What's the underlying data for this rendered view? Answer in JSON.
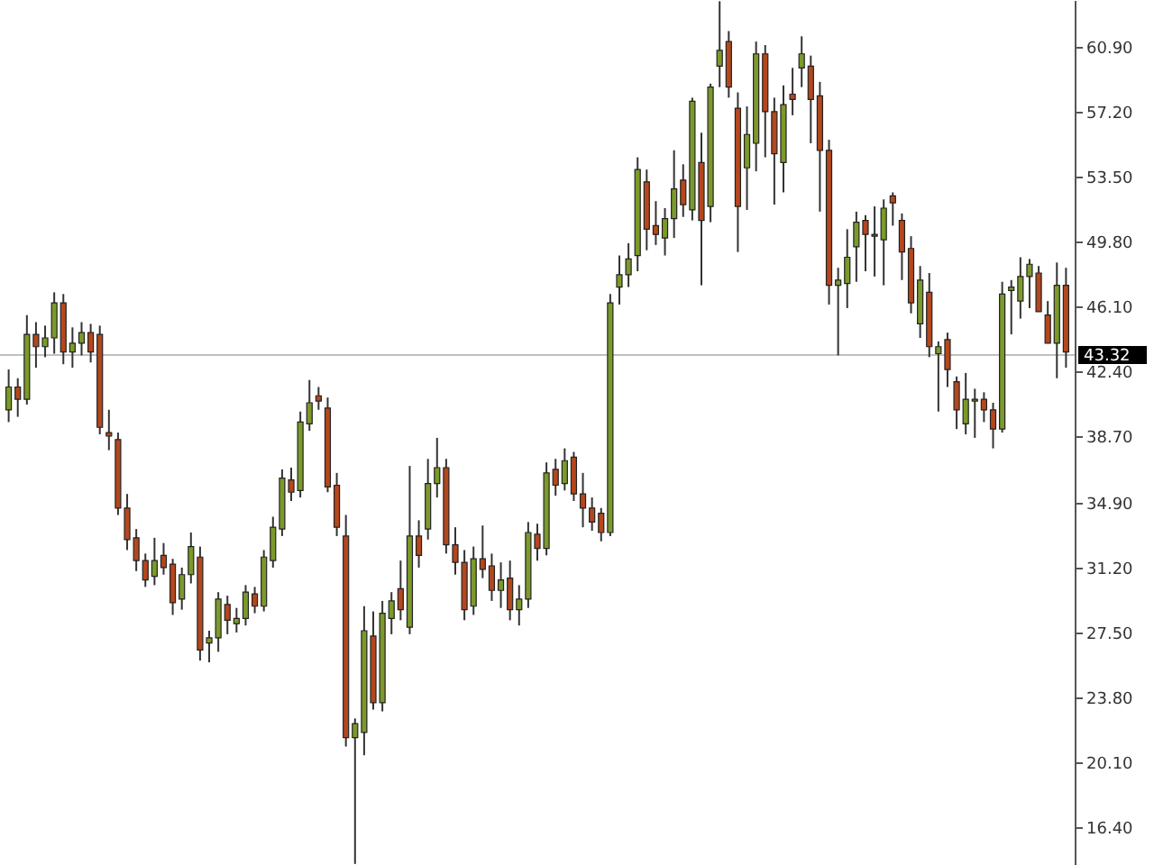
{
  "chart_data": {
    "type": "candlestick",
    "categories": [
      null,
      null,
      null,
      null,
      null,
      null,
      null,
      null,
      null,
      null,
      null,
      null,
      null,
      null,
      null,
      null,
      null,
      null,
      null,
      null,
      null,
      null,
      null,
      null,
      null,
      null,
      null,
      null,
      null,
      null,
      null,
      null,
      null,
      null,
      null,
      null,
      null,
      null,
      null,
      null,
      null,
      null,
      null,
      null,
      null,
      null,
      null,
      null,
      null,
      null,
      null,
      null,
      null,
      null,
      null,
      null,
      null,
      null,
      null,
      null,
      null,
      null,
      null,
      null,
      null,
      null,
      null,
      null,
      null,
      null,
      null,
      null,
      null,
      null,
      null,
      null,
      null,
      null,
      null,
      null,
      null,
      null,
      null,
      null,
      null,
      null,
      null,
      null,
      null,
      null,
      null,
      null,
      null,
      null,
      null,
      null,
      null,
      null,
      null,
      null,
      null,
      null,
      null,
      null,
      null,
      null,
      null,
      null,
      null,
      null,
      null,
      null,
      null,
      null,
      null,
      null,
      null
    ],
    "ohlc": [
      [
        40.2,
        42.5,
        39.5,
        41.5
      ],
      [
        41.5,
        42.0,
        39.8,
        40.8
      ],
      [
        40.8,
        45.6,
        40.5,
        44.5
      ],
      [
        44.5,
        45.2,
        42.6,
        43.8
      ],
      [
        43.8,
        45.0,
        43.2,
        44.3
      ],
      [
        44.3,
        46.9,
        43.4,
        46.3
      ],
      [
        46.3,
        46.8,
        42.8,
        43.5
      ],
      [
        43.5,
        44.9,
        42.6,
        44.0
      ],
      [
        44.0,
        45.2,
        43.3,
        44.6
      ],
      [
        44.6,
        45.1,
        42.9,
        43.5
      ],
      [
        44.5,
        45.0,
        38.8,
        39.2
      ],
      [
        38.9,
        40.2,
        37.9,
        38.7
      ],
      [
        38.5,
        38.9,
        34.2,
        34.6
      ],
      [
        34.6,
        35.4,
        32.2,
        32.8
      ],
      [
        32.9,
        33.4,
        31.0,
        31.6
      ],
      [
        31.6,
        32.0,
        30.1,
        30.5
      ],
      [
        30.7,
        32.9,
        30.2,
        31.6
      ],
      [
        31.9,
        32.6,
        30.8,
        31.2
      ],
      [
        31.4,
        31.7,
        28.5,
        29.2
      ],
      [
        29.4,
        31.2,
        28.8,
        30.8
      ],
      [
        30.8,
        33.2,
        30.3,
        32.4
      ],
      [
        31.8,
        32.4,
        25.9,
        26.5
      ],
      [
        26.9,
        27.6,
        25.8,
        27.2
      ],
      [
        27.2,
        29.8,
        26.4,
        29.4
      ],
      [
        29.1,
        29.6,
        27.4,
        28.2
      ],
      [
        28.0,
        28.9,
        27.5,
        28.3
      ],
      [
        28.3,
        30.2,
        27.9,
        29.8
      ],
      [
        29.7,
        30.1,
        28.6,
        29.0
      ],
      [
        29.0,
        32.2,
        28.7,
        31.8
      ],
      [
        31.6,
        34.1,
        31.2,
        33.5
      ],
      [
        33.4,
        36.8,
        33.0,
        36.3
      ],
      [
        36.2,
        36.9,
        35.0,
        35.5
      ],
      [
        35.6,
        40.1,
        35.2,
        39.5
      ],
      [
        39.4,
        41.9,
        39.0,
        40.6
      ],
      [
        41.0,
        41.5,
        40.2,
        40.7
      ],
      [
        40.3,
        40.9,
        35.5,
        35.8
      ],
      [
        35.9,
        36.6,
        33.0,
        33.5
      ],
      [
        33.0,
        34.2,
        21.0,
        21.5
      ],
      [
        21.5,
        22.6,
        14.3,
        22.3
      ],
      [
        21.8,
        29.0,
        20.5,
        27.6
      ],
      [
        27.3,
        28.7,
        23.1,
        23.5
      ],
      [
        23.5,
        29.3,
        23.0,
        28.6
      ],
      [
        28.3,
        29.8,
        27.4,
        29.3
      ],
      [
        30.0,
        31.6,
        28.2,
        28.8
      ],
      [
        27.8,
        37.0,
        27.4,
        33.0
      ],
      [
        33.0,
        33.9,
        31.2,
        31.9
      ],
      [
        33.4,
        37.4,
        32.8,
        36.0
      ],
      [
        36.0,
        38.6,
        35.2,
        36.9
      ],
      [
        36.9,
        37.4,
        32.0,
        32.5
      ],
      [
        32.5,
        33.5,
        30.8,
        31.5
      ],
      [
        31.5,
        32.2,
        28.2,
        28.8
      ],
      [
        29.0,
        32.4,
        28.5,
        31.7
      ],
      [
        31.7,
        33.6,
        30.6,
        31.1
      ],
      [
        31.3,
        32.0,
        29.3,
        29.9
      ],
      [
        29.9,
        31.5,
        28.9,
        30.5
      ],
      [
        30.6,
        31.6,
        28.2,
        28.8
      ],
      [
        28.8,
        30.2,
        27.9,
        29.4
      ],
      [
        29.4,
        33.8,
        28.9,
        33.2
      ],
      [
        33.1,
        33.7,
        31.6,
        32.3
      ],
      [
        32.3,
        37.2,
        31.9,
        36.6
      ],
      [
        36.8,
        37.4,
        35.3,
        35.9
      ],
      [
        36.0,
        38.0,
        35.6,
        37.3
      ],
      [
        37.5,
        37.8,
        35.0,
        35.4
      ],
      [
        35.4,
        36.6,
        33.5,
        34.6
      ],
      [
        34.6,
        35.2,
        33.3,
        33.8
      ],
      [
        34.3,
        34.6,
        32.7,
        33.2
      ],
      [
        33.2,
        46.8,
        33.0,
        46.3
      ],
      [
        47.2,
        49.0,
        46.2,
        47.9
      ],
      [
        47.9,
        49.7,
        47.2,
        48.8
      ],
      [
        49.0,
        54.6,
        48.1,
        53.9
      ],
      [
        53.2,
        53.9,
        49.3,
        50.5
      ],
      [
        50.7,
        52.1,
        49.6,
        50.2
      ],
      [
        50.0,
        51.7,
        49.0,
        51.1
      ],
      [
        51.1,
        55.0,
        50.0,
        52.8
      ],
      [
        53.3,
        54.2,
        51.2,
        51.9
      ],
      [
        51.6,
        58.0,
        51.0,
        57.8
      ],
      [
        54.3,
        56.0,
        47.3,
        51.0
      ],
      [
        51.8,
        58.8,
        50.9,
        58.6
      ],
      [
        59.8,
        63.5,
        58.6,
        60.7
      ],
      [
        61.2,
        61.8,
        58.0,
        58.6
      ],
      [
        57.4,
        58.3,
        49.2,
        51.8
      ],
      [
        54.0,
        57.5,
        51.6,
        55.9
      ],
      [
        55.4,
        61.2,
        53.8,
        60.5
      ],
      [
        60.5,
        61.0,
        54.6,
        57.2
      ],
      [
        57.2,
        58.0,
        51.9,
        54.8
      ],
      [
        54.3,
        58.7,
        52.6,
        57.6
      ],
      [
        58.2,
        59.7,
        57.0,
        57.9
      ],
      [
        59.7,
        61.5,
        58.6,
        60.5
      ],
      [
        59.8,
        60.4,
        55.4,
        57.9
      ],
      [
        58.1,
        58.9,
        51.5,
        55.0
      ],
      [
        55.0,
        55.6,
        46.2,
        47.3
      ],
      [
        47.3,
        48.3,
        43.3,
        47.6
      ],
      [
        47.4,
        50.5,
        46.0,
        48.9
      ],
      [
        49.5,
        51.5,
        47.5,
        50.9
      ],
      [
        51.0,
        51.3,
        48.1,
        50.2
      ],
      [
        50.2,
        51.8,
        47.8,
        50.1
      ],
      [
        49.9,
        52.2,
        47.3,
        51.7
      ],
      [
        52.4,
        52.6,
        50.7,
        52.0
      ],
      [
        51.0,
        51.4,
        47.6,
        49.2
      ],
      [
        49.4,
        50.1,
        45.7,
        46.3
      ],
      [
        45.1,
        48.4,
        44.3,
        47.6
      ],
      [
        46.9,
        48.0,
        43.2,
        43.8
      ],
      [
        43.4,
        44.1,
        40.1,
        43.8
      ],
      [
        44.2,
        44.6,
        41.5,
        42.5
      ],
      [
        41.8,
        42.1,
        39.1,
        40.2
      ],
      [
        39.4,
        42.3,
        38.8,
        40.8
      ],
      [
        40.7,
        41.4,
        38.6,
        40.8
      ],
      [
        40.8,
        41.2,
        39.5,
        40.2
      ],
      [
        40.2,
        40.6,
        38.0,
        39.1
      ],
      [
        39.1,
        47.5,
        38.9,
        46.8
      ],
      [
        47.0,
        47.6,
        44.5,
        47.2
      ],
      [
        46.4,
        48.9,
        45.4,
        47.8
      ],
      [
        47.8,
        48.8,
        46.0,
        48.5
      ],
      [
        48.0,
        48.4,
        45.8,
        45.8
      ],
      [
        45.6,
        46.4,
        44.0,
        44.0
      ],
      [
        44.0,
        48.6,
        42.0,
        47.3
      ],
      [
        47.3,
        48.3,
        42.6,
        43.5
      ]
    ],
    "colors": [
      "#7b9a2a",
      "#b4471d",
      "#7b9a2a",
      "#b4471d",
      "#7b9a2a",
      "#7b9a2a",
      "#b4471d",
      "#7b9a2a",
      "#7b9a2a",
      "#b4471d",
      "#b4471d",
      "#b4471d",
      "#b4471d",
      "#b4471d",
      "#b4471d",
      "#b4471d",
      "#7b9a2a",
      "#b4471d",
      "#b4471d",
      "#7b9a2a",
      "#7b9a2a",
      "#b4471d",
      "#7b9a2a",
      "#7b9a2a",
      "#b4471d",
      "#7b9a2a",
      "#7b9a2a",
      "#b4471d",
      "#7b9a2a",
      "#7b9a2a",
      "#7b9a2a",
      "#b4471d",
      "#7b9a2a",
      "#7b9a2a",
      "#b4471d",
      "#b4471d",
      "#b4471d",
      "#b4471d",
      "#7b9a2a",
      "#7b9a2a",
      "#b4471d",
      "#7b9a2a",
      "#7b9a2a",
      "#b4471d",
      "#7b9a2a",
      "#b4471d",
      "#7b9a2a",
      "#7b9a2a",
      "#b4471d",
      "#b4471d",
      "#b4471d",
      "#7b9a2a",
      "#b4471d",
      "#b4471d",
      "#7b9a2a",
      "#b4471d",
      "#7b9a2a",
      "#7b9a2a",
      "#b4471d",
      "#7b9a2a",
      "#b4471d",
      "#7b9a2a",
      "#b4471d",
      "#b4471d",
      "#b4471d",
      "#b4471d",
      "#7b9a2a",
      "#7b9a2a",
      "#7b9a2a",
      "#7b9a2a",
      "#b4471d",
      "#b4471d",
      "#7b9a2a",
      "#7b9a2a",
      "#b4471d",
      "#7b9a2a",
      "#b4471d",
      "#7b9a2a",
      "#7b9a2a",
      "#b4471d",
      "#b4471d",
      "#7b9a2a",
      "#7b9a2a",
      "#b4471d",
      "#b4471d",
      "#7b9a2a",
      "#b4471d",
      "#7b9a2a",
      "#b4471d",
      "#b4471d",
      "#b4471d",
      "#7b9a2a",
      "#7b9a2a",
      "#7b9a2a",
      "#b4471d",
      "#b4471d",
      "#7b9a2a",
      "#b4471d",
      "#b4471d",
      "#b4471d",
      "#7b9a2a",
      "#b4471d",
      "#7b9a2a",
      "#b4471d",
      "#b4471d",
      "#7b9a2a",
      "#7b9a2a",
      "#b4471d",
      "#b4471d",
      "#7b9a2a",
      "#7b9a2a",
      "#7b9a2a",
      "#7b9a2a",
      "#b4471d",
      "#b4471d",
      "#7b9a2a",
      "#b4471d"
    ],
    "ylim": [
      14.24,
      63.57
    ],
    "yticks": [
      {
        "value": 16.4,
        "label": "16.40"
      },
      {
        "value": 20.1,
        "label": "20.10"
      },
      {
        "value": 23.8,
        "label": "23.80"
      },
      {
        "value": 27.5,
        "label": "27.50"
      },
      {
        "value": 31.2,
        "label": "31.20"
      },
      {
        "value": 34.9,
        "label": "34.90"
      },
      {
        "value": 38.7,
        "label": "38.70"
      },
      {
        "value": 42.4,
        "label": "42.40"
      },
      {
        "value": 46.1,
        "label": "46.10"
      },
      {
        "value": 49.8,
        "label": "49.80"
      },
      {
        "value": 53.5,
        "label": "53.50"
      },
      {
        "value": 57.2,
        "label": "57.20"
      },
      {
        "value": 60.9,
        "label": "60.90"
      }
    ],
    "ref_lines": [
      {
        "axis": "y",
        "value": 43.32,
        "label": "43.32",
        "color": "#c0c0c0"
      }
    ],
    "tick_labels": "y",
    "grid": false
  }
}
